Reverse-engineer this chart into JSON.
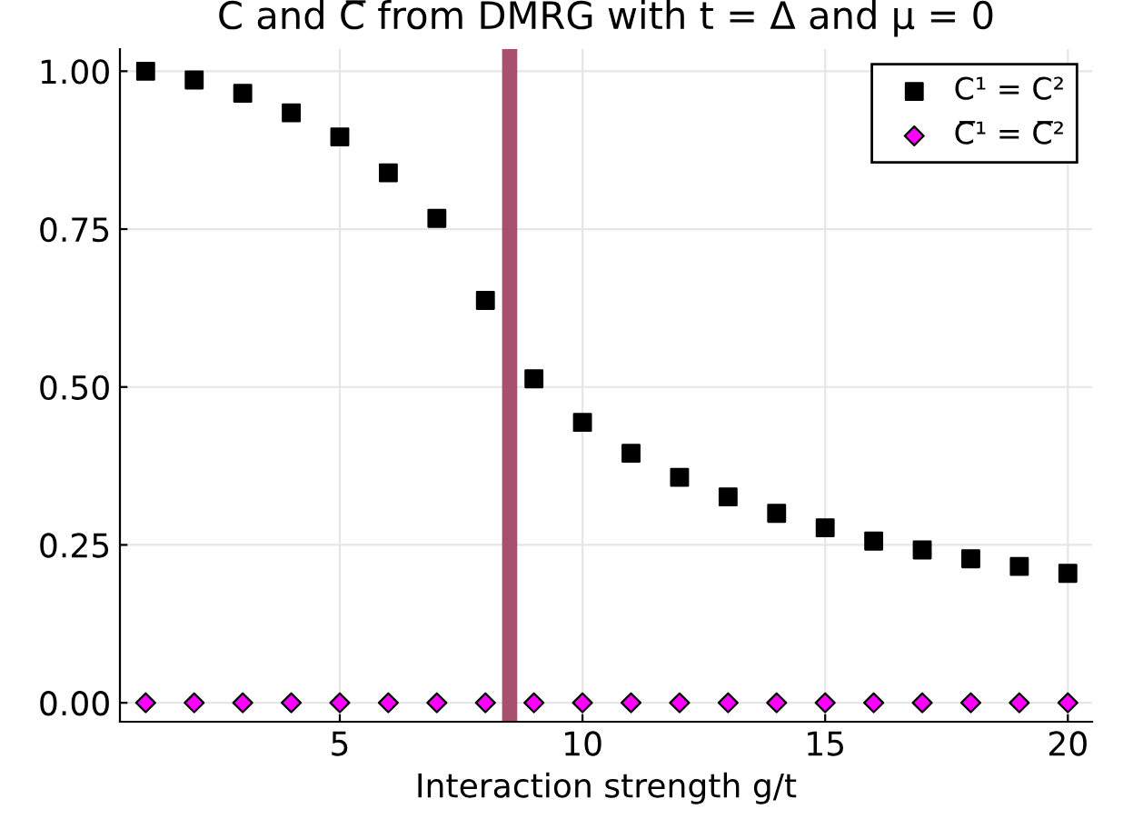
{
  "chart_data": {
    "type": "scatter",
    "title": "C and C̅ from DMRG with t = Δ and μ = 0",
    "xlabel": "Interaction strength g/t",
    "x": [
      1,
      2,
      3,
      4,
      5,
      6,
      7,
      8,
      9,
      10,
      11,
      12,
      13,
      14,
      15,
      16,
      17,
      18,
      19,
      20
    ],
    "series": [
      {
        "name": "C¹ = C²",
        "color": "#000000",
        "marker": "square",
        "values": [
          1.0,
          0.986,
          0.965,
          0.934,
          0.896,
          0.839,
          0.767,
          0.637,
          0.513,
          0.444,
          0.395,
          0.357,
          0.326,
          0.3,
          0.277,
          0.256,
          0.242,
          0.228,
          0.216,
          0.205
        ]
      },
      {
        "name": "C̅¹ = C̅²",
        "color": "#ff00ff",
        "marker": "diamond",
        "values": [
          0,
          0,
          0,
          0,
          0,
          0,
          0,
          0,
          0,
          0,
          0,
          0,
          0,
          0,
          0,
          0,
          0,
          0,
          0,
          0
        ]
      }
    ],
    "ref_lines": [
      {
        "axis": "x",
        "value": 8.5,
        "color": "#a8506f"
      }
    ],
    "xlim": [
      0.47,
      20.5
    ],
    "ylim": [
      -0.03,
      1.035
    ],
    "xticks": [
      5,
      10,
      15,
      20
    ],
    "yticks": [
      {
        "value": 0,
        "label": "0.00"
      },
      {
        "value": 0.25,
        "label": "0.25"
      },
      {
        "value": 0.5,
        "label": "0.50"
      },
      {
        "value": 0.75,
        "label": "0.75"
      },
      {
        "value": 1,
        "label": "1.00"
      }
    ],
    "grid": true,
    "legend": "top right"
  }
}
